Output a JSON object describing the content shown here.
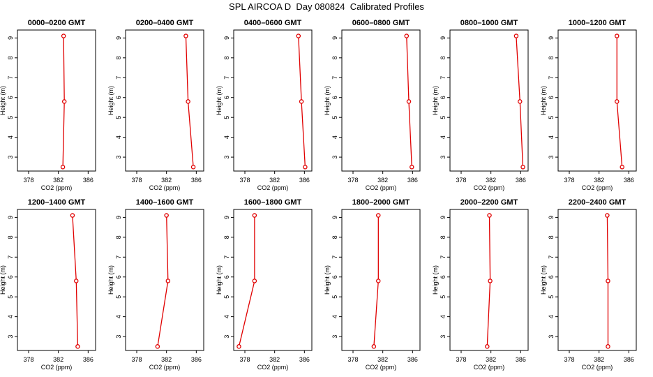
{
  "figure": {
    "title": "SPL AIRCOA D  Day 080824  Calibrated Profiles"
  },
  "chart_data": [
    {
      "type": "line",
      "title": "0000–0200 GMT",
      "xlabel": "CO2 (ppm)",
      "ylabel": "Height (m)",
      "xlim": [
        376.5,
        387
      ],
      "ylim": [
        2.3,
        9.4
      ],
      "xticks": [
        378,
        382,
        386
      ],
      "yticks": [
        3,
        4,
        5,
        6,
        7,
        8,
        9
      ],
      "series": [
        {
          "x": [
            382.6,
            382.8,
            382.7
          ],
          "y": [
            2.5,
            5.8,
            9.1
          ],
          "color": "#e00000"
        }
      ]
    },
    {
      "type": "line",
      "title": "0200–0400 GMT",
      "xlabel": "CO2 (ppm)",
      "ylabel": "Height (m)",
      "xlim": [
        376.5,
        387
      ],
      "ylim": [
        2.3,
        9.4
      ],
      "xticks": [
        378,
        382,
        386
      ],
      "yticks": [
        3,
        4,
        5,
        6,
        7,
        8,
        9
      ],
      "series": [
        {
          "x": [
            385.6,
            384.9,
            384.6
          ],
          "y": [
            2.5,
            5.8,
            9.1
          ],
          "color": "#e00000"
        }
      ]
    },
    {
      "type": "line",
      "title": "0400–0600 GMT",
      "xlabel": "CO2 (ppm)",
      "ylabel": "Height (m)",
      "xlim": [
        376.5,
        387
      ],
      "ylim": [
        2.3,
        9.4
      ],
      "xticks": [
        378,
        382,
        386
      ],
      "yticks": [
        3,
        4,
        5,
        6,
        7,
        8,
        9
      ],
      "series": [
        {
          "x": [
            386.1,
            385.6,
            385.2
          ],
          "y": [
            2.5,
            5.8,
            9.1
          ],
          "color": "#e00000"
        }
      ]
    },
    {
      "type": "line",
      "title": "0600–0800 GMT",
      "xlabel": "CO2 (ppm)",
      "ylabel": "Height (m)",
      "xlim": [
        376.5,
        387
      ],
      "ylim": [
        2.3,
        9.4
      ],
      "xticks": [
        378,
        382,
        386
      ],
      "yticks": [
        3,
        4,
        5,
        6,
        7,
        8,
        9
      ],
      "series": [
        {
          "x": [
            385.9,
            385.5,
            385.2
          ],
          "y": [
            2.5,
            5.8,
            9.1
          ],
          "color": "#e00000"
        }
      ]
    },
    {
      "type": "line",
      "title": "0800–1000 GMT",
      "xlabel": "CO2 (ppm)",
      "ylabel": "Height (m)",
      "xlim": [
        376.5,
        387
      ],
      "ylim": [
        2.3,
        9.4
      ],
      "xticks": [
        378,
        382,
        386
      ],
      "yticks": [
        3,
        4,
        5,
        6,
        7,
        8,
        9
      ],
      "series": [
        {
          "x": [
            386.3,
            385.9,
            385.4
          ],
          "y": [
            2.5,
            5.8,
            9.1
          ],
          "color": "#e00000"
        }
      ]
    },
    {
      "type": "line",
      "title": "1000–1200 GMT",
      "xlabel": "CO2 (ppm)",
      "ylabel": "Height (m)",
      "xlim": [
        376.5,
        387
      ],
      "ylim": [
        2.3,
        9.4
      ],
      "xticks": [
        378,
        382,
        386
      ],
      "yticks": [
        3,
        4,
        5,
        6,
        7,
        8,
        9
      ],
      "series": [
        {
          "x": [
            385.1,
            384.4,
            384.4
          ],
          "y": [
            2.5,
            5.8,
            9.1
          ],
          "color": "#e00000"
        }
      ]
    },
    {
      "type": "line",
      "title": "1200–1400 GMT",
      "xlabel": "CO2 (ppm)",
      "ylabel": "Height (m)",
      "xlim": [
        376.5,
        387
      ],
      "ylim": [
        2.3,
        9.4
      ],
      "xticks": [
        378,
        382,
        386
      ],
      "yticks": [
        3,
        4,
        5,
        6,
        7,
        8,
        9
      ],
      "series": [
        {
          "x": [
            384.6,
            384.4,
            383.9
          ],
          "y": [
            2.5,
            5.8,
            9.1
          ],
          "color": "#e00000"
        }
      ]
    },
    {
      "type": "line",
      "title": "1400–1600 GMT",
      "xlabel": "CO2 (ppm)",
      "ylabel": "Height (m)",
      "xlim": [
        376.5,
        387
      ],
      "ylim": [
        2.3,
        9.4
      ],
      "xticks": [
        378,
        382,
        386
      ],
      "yticks": [
        3,
        4,
        5,
        6,
        7,
        8,
        9
      ],
      "series": [
        {
          "x": [
            380.8,
            382.2,
            382.0
          ],
          "y": [
            2.5,
            5.8,
            9.1
          ],
          "color": "#e00000"
        }
      ]
    },
    {
      "type": "line",
      "title": "1600–1800 GMT",
      "xlabel": "CO2 (ppm)",
      "ylabel": "Height (m)",
      "xlim": [
        376.5,
        387
      ],
      "ylim": [
        2.3,
        9.4
      ],
      "xticks": [
        378,
        382,
        386
      ],
      "yticks": [
        3,
        4,
        5,
        6,
        7,
        8,
        9
      ],
      "series": [
        {
          "x": [
            377.2,
            379.3,
            379.3
          ],
          "y": [
            2.5,
            5.8,
            9.1
          ],
          "color": "#e00000"
        }
      ]
    },
    {
      "type": "line",
      "title": "1800–2000 GMT",
      "xlabel": "CO2 (ppm)",
      "ylabel": "Height (m)",
      "xlim": [
        376.5,
        387
      ],
      "ylim": [
        2.3,
        9.4
      ],
      "xticks": [
        378,
        382,
        386
      ],
      "yticks": [
        3,
        4,
        5,
        6,
        7,
        8,
        9
      ],
      "series": [
        {
          "x": [
            380.8,
            381.4,
            381.4
          ],
          "y": [
            2.5,
            5.8,
            9.1
          ],
          "color": "#e00000"
        }
      ]
    },
    {
      "type": "line",
      "title": "2000–2200 GMT",
      "xlabel": "CO2 (ppm)",
      "ylabel": "Height (m)",
      "xlim": [
        376.5,
        387
      ],
      "ylim": [
        2.3,
        9.4
      ],
      "xticks": [
        378,
        382,
        386
      ],
      "yticks": [
        3,
        4,
        5,
        6,
        7,
        8,
        9
      ],
      "series": [
        {
          "x": [
            381.5,
            381.9,
            381.8
          ],
          "y": [
            2.5,
            5.8,
            9.1
          ],
          "color": "#e00000"
        }
      ]
    },
    {
      "type": "line",
      "title": "2200–2400 GMT",
      "xlabel": "CO2 (ppm)",
      "ylabel": "Height (m)",
      "xlim": [
        376.5,
        387
      ],
      "ylim": [
        2.3,
        9.4
      ],
      "xticks": [
        378,
        382,
        386
      ],
      "yticks": [
        3,
        4,
        5,
        6,
        7,
        8,
        9
      ],
      "series": [
        {
          "x": [
            383.2,
            383.2,
            383.1
          ],
          "y": [
            2.5,
            5.8,
            9.1
          ],
          "color": "#e00000"
        }
      ]
    }
  ]
}
